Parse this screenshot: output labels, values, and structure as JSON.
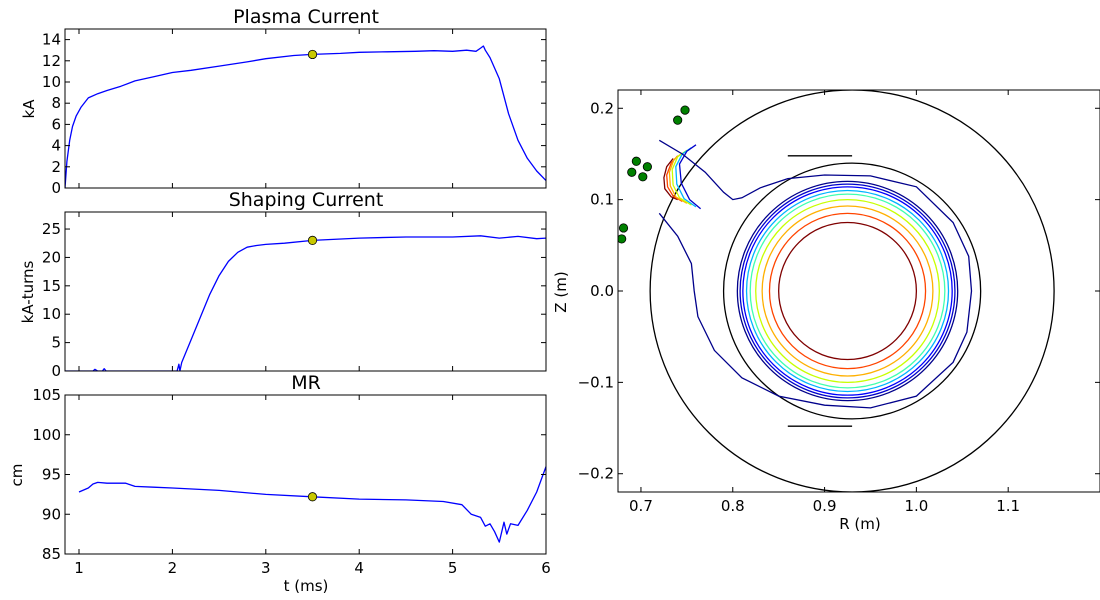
{
  "chart_data": [
    {
      "type": "line",
      "title": "Plasma Current",
      "xlabel": "",
      "ylabel": "kA",
      "xlim": [
        0.85,
        6
      ],
      "ylim": [
        0,
        15
      ],
      "xticks": [
        1,
        2,
        3,
        4,
        5,
        6
      ],
      "xtick_labels_visible": false,
      "yticks": [
        0,
        2,
        4,
        6,
        8,
        10,
        12,
        14
      ],
      "ytick_labels": [
        "0",
        "2",
        "4",
        "6",
        "8",
        "10",
        "12",
        "14"
      ],
      "series": [
        {
          "color": "#0000ff",
          "x": [
            0.85,
            0.87,
            0.9,
            0.93,
            0.97,
            1.02,
            1.1,
            1.2,
            1.3,
            1.45,
            1.6,
            1.8,
            2.0,
            2.2,
            2.5,
            2.8,
            3.0,
            3.3,
            3.5,
            3.8,
            4.0,
            4.3,
            4.6,
            4.8,
            5.0,
            5.15,
            5.25,
            5.3,
            5.33,
            5.35,
            5.4,
            5.5,
            5.6,
            5.7,
            5.8,
            5.9,
            6.0
          ],
          "y": [
            0.0,
            2.5,
            4.5,
            5.8,
            6.8,
            7.6,
            8.5,
            8.9,
            9.2,
            9.6,
            10.1,
            10.5,
            10.9,
            11.1,
            11.5,
            11.9,
            12.2,
            12.5,
            12.6,
            12.7,
            12.8,
            12.85,
            12.9,
            12.95,
            12.9,
            13.0,
            12.9,
            13.2,
            13.4,
            13.0,
            12.3,
            10.3,
            7.0,
            4.5,
            2.8,
            1.6,
            0.7
          ]
        }
      ],
      "marker": {
        "x": 3.5,
        "y": 12.6,
        "color": "#c8c800"
      }
    },
    {
      "type": "line",
      "title": "Shaping Current",
      "xlabel": "",
      "ylabel": "kA-turns",
      "xlim": [
        0.85,
        6
      ],
      "ylim": [
        0,
        28
      ],
      "xticks": [
        1,
        2,
        3,
        4,
        5,
        6
      ],
      "xtick_labels_visible": false,
      "yticks": [
        0,
        5,
        10,
        15,
        20,
        25
      ],
      "ytick_labels": [
        "0",
        "5",
        "10",
        "15",
        "20",
        "25"
      ],
      "series": [
        {
          "color": "#0000ff",
          "x": [
            0.85,
            1.0,
            1.15,
            1.17,
            1.2,
            1.25,
            1.27,
            1.29,
            1.35,
            1.6,
            1.9,
            2.05,
            2.07,
            2.08,
            2.1,
            2.2,
            2.3,
            2.4,
            2.5,
            2.6,
            2.7,
            2.8,
            2.9,
            3.0,
            3.2,
            3.5,
            4.0,
            4.5,
            5.0,
            5.3,
            5.5,
            5.7,
            5.9,
            6.0
          ],
          "y": [
            0.0,
            0.0,
            0.0,
            0.3,
            0.0,
            0.0,
            0.4,
            0.0,
            0.0,
            0.0,
            0.0,
            0.0,
            1.2,
            0.0,
            1.5,
            5.5,
            9.5,
            13.5,
            16.8,
            19.3,
            20.9,
            21.8,
            22.1,
            22.3,
            22.5,
            23.0,
            23.4,
            23.6,
            23.6,
            23.8,
            23.4,
            23.7,
            23.3,
            23.4
          ]
        }
      ],
      "marker": {
        "x": 3.5,
        "y": 23.0,
        "color": "#c8c800"
      }
    },
    {
      "type": "line",
      "title": "MR",
      "xlabel": "t (ms)",
      "ylabel": "cm",
      "xlim": [
        0.85,
        6
      ],
      "ylim": [
        85,
        105
      ],
      "xticks": [
        1,
        2,
        3,
        4,
        5,
        6
      ],
      "xtick_labels": [
        "1",
        "2",
        "3",
        "4",
        "5",
        "6"
      ],
      "yticks": [
        85,
        90,
        95,
        100,
        105
      ],
      "ytick_labels": [
        "85",
        "90",
        "95",
        "100",
        "105"
      ],
      "series": [
        {
          "color": "#0000ff",
          "x": [
            1.0,
            1.1,
            1.15,
            1.2,
            1.3,
            1.5,
            1.6,
            1.8,
            2.0,
            2.5,
            3.0,
            3.5,
            4.0,
            4.5,
            4.9,
            5.1,
            5.2,
            5.3,
            5.35,
            5.4,
            5.45,
            5.5,
            5.55,
            5.58,
            5.62,
            5.7,
            5.8,
            5.9,
            6.0
          ],
          "y": [
            92.8,
            93.3,
            93.8,
            94.0,
            93.9,
            93.9,
            93.5,
            93.4,
            93.3,
            93.0,
            92.5,
            92.2,
            91.9,
            91.8,
            91.6,
            91.2,
            90.0,
            89.6,
            88.5,
            88.8,
            87.8,
            86.5,
            89.0,
            87.5,
            88.8,
            88.6,
            90.5,
            92.8,
            96.0
          ]
        }
      ],
      "marker": {
        "x": 3.5,
        "y": 92.2,
        "color": "#c8c800"
      }
    },
    {
      "type": "line",
      "title": "",
      "xlabel": "R (m)",
      "ylabel": "Z (m)",
      "xlim": [
        0.675,
        1.2
      ],
      "ylim": [
        -0.22,
        0.22
      ],
      "xticks": [
        0.7,
        0.8,
        0.9,
        1.0,
        1.1
      ],
      "xtick_labels": [
        "0.7",
        "0.8",
        "0.9",
        "1.0",
        "1.1"
      ],
      "yticks": [
        -0.2,
        -0.1,
        0.0,
        0.1,
        0.2
      ],
      "ytick_labels": [
        "−0.2",
        "−0.1",
        "0.0",
        "0.1",
        "0.2"
      ],
      "boundaries": [
        {
          "kind": "circle",
          "center": [
            0.93,
            0.0
          ],
          "radius": 0.22,
          "color": "#000000"
        },
        {
          "kind": "circle",
          "center": [
            0.93,
            0.0
          ],
          "radius": 0.14,
          "color": "#000000"
        },
        {
          "kind": "polyline",
          "x": [
            0.86,
            0.93
          ],
          "y": [
            0.148,
            0.148
          ],
          "color": "#000000"
        },
        {
          "kind": "polyline",
          "x": [
            0.86,
            0.93
          ],
          "y": [
            -0.148,
            -0.148
          ],
          "color": "#000000"
        }
      ],
      "flux_surfaces": [
        {
          "color": "#7f0000",
          "center": [
            0.925,
            0.0
          ],
          "radius": 0.075
        },
        {
          "color": "#ff4500",
          "center": [
            0.925,
            0.0
          ],
          "radius": 0.085
        },
        {
          "color": "#ffb000",
          "center": [
            0.925,
            0.0
          ],
          "radius": 0.093
        },
        {
          "color": "#c8ff00",
          "center": [
            0.925,
            0.0
          ],
          "radius": 0.1
        },
        {
          "color": "#40ffb0",
          "center": [
            0.925,
            0.0
          ],
          "radius": 0.106
        },
        {
          "color": "#00b4ff",
          "center": [
            0.925,
            0.0
          ],
          "radius": 0.11
        },
        {
          "color": "#0000ff",
          "center": [
            0.925,
            0.0
          ],
          "radius": 0.114
        },
        {
          "color": "#0000cc",
          "center": [
            0.925,
            0.0
          ],
          "radius": 0.117
        },
        {
          "color": "#00008b",
          "center": [
            0.925,
            0.0
          ],
          "radius": 0.12
        }
      ],
      "upper_contours": [
        {
          "color": "#7f0000",
          "x": [
            0.735,
            0.728,
            0.725,
            0.726,
            0.733,
            0.74
          ],
          "y": [
            0.145,
            0.136,
            0.124,
            0.112,
            0.103,
            0.1
          ]
        },
        {
          "color": "#ff4500",
          "x": [
            0.74,
            0.733,
            0.728,
            0.729,
            0.735,
            0.745
          ],
          "y": [
            0.148,
            0.14,
            0.127,
            0.114,
            0.104,
            0.098
          ]
        },
        {
          "color": "#ffb000",
          "x": [
            0.745,
            0.736,
            0.731,
            0.732,
            0.738,
            0.75
          ],
          "y": [
            0.151,
            0.144,
            0.13,
            0.115,
            0.103,
            0.096
          ]
        },
        {
          "color": "#c8ff00",
          "x": [
            0.75,
            0.74,
            0.734,
            0.735,
            0.742,
            0.755
          ],
          "y": [
            0.154,
            0.147,
            0.133,
            0.116,
            0.102,
            0.094
          ]
        },
        {
          "color": "#00b4ff",
          "x": [
            0.755,
            0.745,
            0.738,
            0.739,
            0.747,
            0.76
          ],
          "y": [
            0.157,
            0.15,
            0.136,
            0.117,
            0.101,
            0.092
          ]
        },
        {
          "color": "#0000cc",
          "x": [
            0.76,
            0.75,
            0.742,
            0.744,
            0.753,
            0.765
          ],
          "y": [
            0.16,
            0.153,
            0.139,
            0.118,
            0.1,
            0.09
          ]
        }
      ],
      "separatrix": {
        "color": "#00008b",
        "x": [
          0.72,
          0.745,
          0.77,
          0.79,
          0.8,
          0.81,
          0.83,
          0.86,
          0.9,
          0.95,
          1.0,
          1.04,
          1.057,
          1.06,
          1.055,
          1.04,
          1.0,
          0.95,
          0.9,
          0.85,
          0.81,
          0.78,
          0.762,
          0.758,
          0.755,
          0.74,
          0.72
        ],
        "y": [
          0.165,
          0.15,
          0.13,
          0.108,
          0.1,
          0.102,
          0.113,
          0.123,
          0.127,
          0.126,
          0.114,
          0.075,
          0.038,
          0.0,
          -0.045,
          -0.078,
          -0.115,
          -0.128,
          -0.125,
          -0.115,
          -0.095,
          -0.065,
          -0.028,
          0.0,
          0.03,
          0.06,
          0.085
        ]
      },
      "coil_points": {
        "color": "#008000",
        "x": [
          0.681,
          0.679,
          0.69,
          0.695,
          0.702,
          0.707,
          0.74,
          0.748
        ],
        "y": [
          0.069,
          0.057,
          0.13,
          0.142,
          0.125,
          0.136,
          0.187,
          0.198
        ]
      }
    }
  ]
}
